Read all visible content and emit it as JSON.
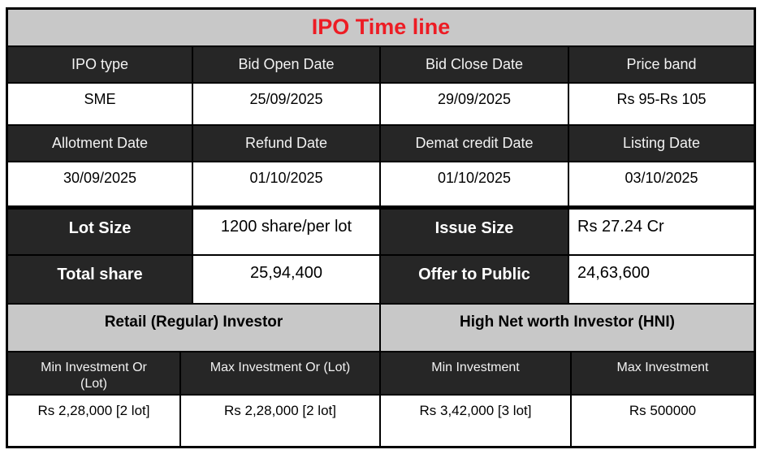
{
  "title": "IPO Time line",
  "colors": {
    "title_red": "#ed1c24",
    "header_dark": "#262626",
    "section_gray": "#c8c8c8",
    "border_black": "#000000",
    "cell_white": "#ffffff"
  },
  "timeline": {
    "header1": [
      "IPO type",
      "Bid Open Date",
      "Bid Close Date",
      "Price band"
    ],
    "values1": [
      "SME",
      "25/09/2025",
      "29/09/2025",
      "Rs 95-Rs 105"
    ],
    "header2": [
      "Allotment Date",
      "Refund Date",
      "Demat credit Date",
      "Listing Date"
    ],
    "values2": [
      "30/09/2025",
      "01/10/2025",
      "01/10/2025",
      "03/10/2025"
    ]
  },
  "details": {
    "rows": [
      {
        "label1": "Lot Size",
        "value1": "1200 share/per lot",
        "label2": "Issue Size",
        "value2": "Rs 27.24 Cr"
      },
      {
        "label1": "Total share",
        "value1": "25,94,400",
        "label2": "Offer to Public",
        "value2": "24,63,600"
      }
    ]
  },
  "investors": {
    "retail": {
      "title": "Retail (Regular) Investor",
      "headers": [
        "Min Investment Or (Lot)",
        "Max Investment Or (Lot)"
      ],
      "values": [
        "Rs 2,28,000 [2 lot]",
        "Rs 2,28,000 [2 lot]"
      ]
    },
    "hni": {
      "title": "High Net worth Investor (HNI)",
      "headers": [
        "Min Investment",
        "Max Investment"
      ],
      "values": [
        "Rs 3,42,000 [3 lot]",
        "Rs 500000"
      ]
    }
  }
}
